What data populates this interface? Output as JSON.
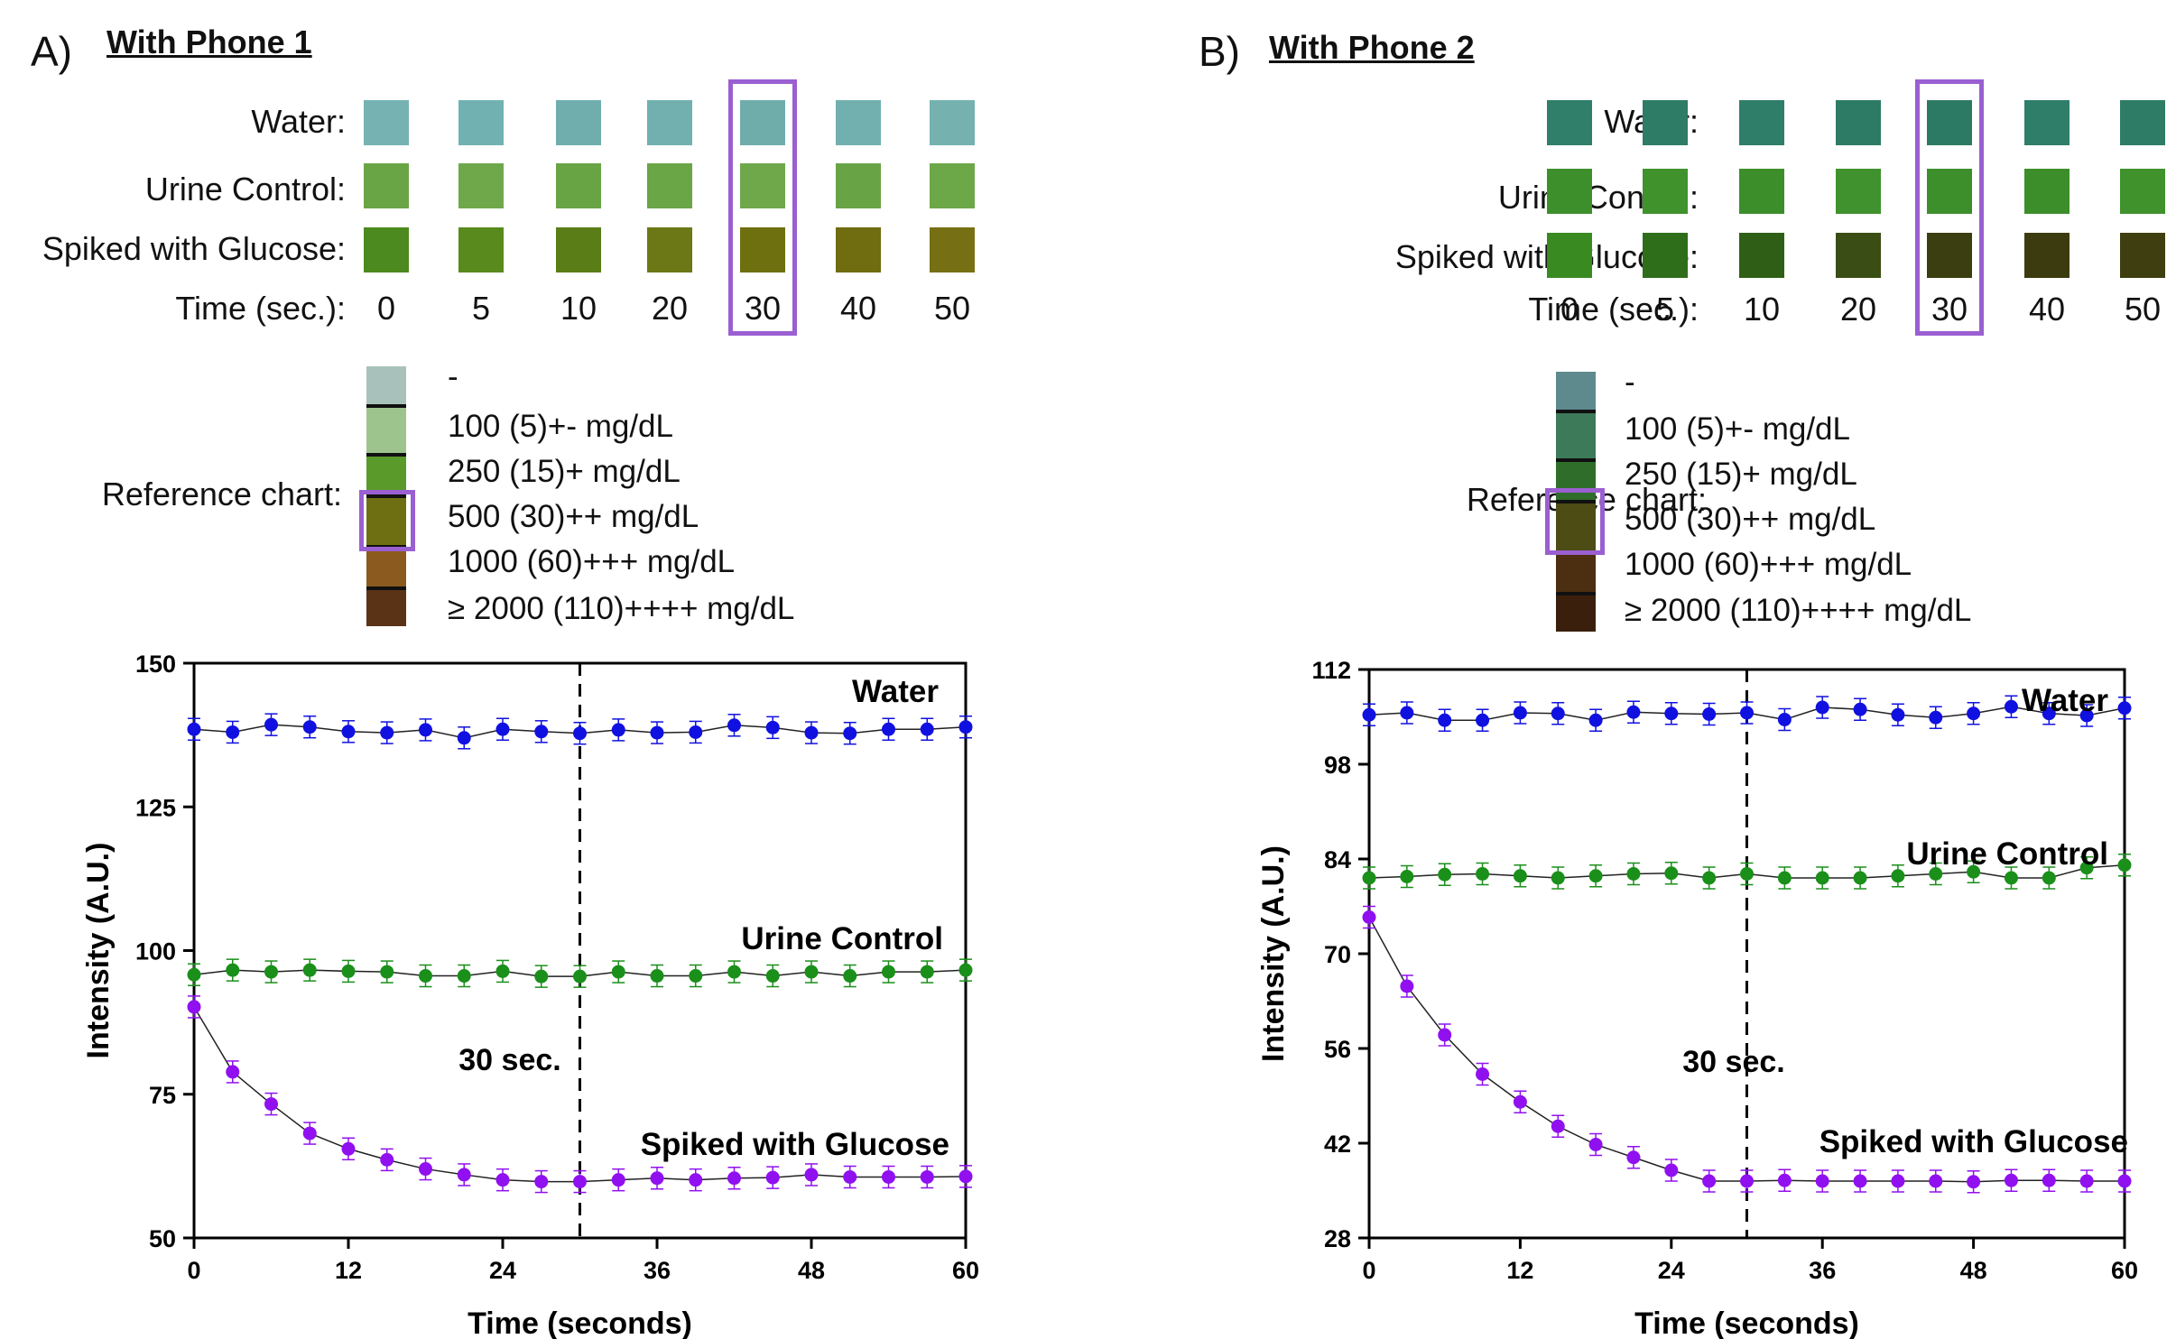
{
  "panels": [
    {
      "letter": "A)",
      "title": "With Phone 1",
      "rows": [
        {
          "label": "Water:",
          "colors": [
            "#76b2b2",
            "#72b1b1",
            "#70aeae",
            "#71b0ae",
            "#6fadab",
            "#71b0ae",
            "#74b1af"
          ]
        },
        {
          "label": "Urine Control:",
          "colors": [
            "#6aa545",
            "#6fa84a",
            "#68a444",
            "#6aa546",
            "#6ea84b",
            "#68a446",
            "#6ca748"
          ]
        },
        {
          "label": "Spiked with Glucose:",
          "colors": [
            "#4c8a1f",
            "#588a1e",
            "#5a7d17",
            "#6c7815",
            "#6e6f0e",
            "#706c10",
            "#776f13"
          ]
        }
      ],
      "time_label": "Time (sec.):",
      "times": [
        "0",
        "5",
        "10",
        "20",
        "30",
        "40",
        "50"
      ],
      "ref_title": "Reference chart:",
      "ref_colors": [
        "#a8c2bb",
        "#9ec48e",
        "#5a9a2a",
        "#6e6f12",
        "#8a5a1e",
        "#5a3316"
      ],
      "ref_labels": [
        "-",
        "100 (5)+- mg/dL",
        "250 (15)+ mg/dL",
        "500 (30)++ mg/dL",
        "1000 (60)+++ mg/dL",
        "≥ 2000 (110)++++ mg/dL"
      ]
    },
    {
      "letter": "B)",
      "title": "With Phone 2",
      "rows": [
        {
          "label": "Water:",
          "colors": [
            "#2f7f6a",
            "#2e7c66",
            "#2f7e69",
            "#2d7b65",
            "#2d7a64",
            "#2f7e69",
            "#2e7c66"
          ]
        },
        {
          "label": "Urine Control:",
          "colors": [
            "#3d8f2c",
            "#3f922c",
            "#3c8e2b",
            "#3f922d",
            "#3d8f2c",
            "#3c8e2b",
            "#3f922c"
          ]
        },
        {
          "label": "Spiked with Glucose:",
          "colors": [
            "#3a8a22",
            "#2e6e1a",
            "#2f5f16",
            "#3a4d14",
            "#3b3e10",
            "#3c3b0f",
            "#3f3e11"
          ]
        }
      ],
      "time_label": "Time (sec.):",
      "times": [
        "0",
        "5",
        "10",
        "20",
        "30",
        "40",
        "50"
      ],
      "ref_title": "Reference chart:",
      "ref_colors": [
        "#5e8a8e",
        "#3d7a5a",
        "#2f6e2a",
        "#4c4c14",
        "#4c2e10",
        "#3a200c"
      ],
      "ref_labels": [
        "-",
        "100 (5)+- mg/dL",
        "250 (15)+ mg/dL",
        "500 (30)++ mg/dL",
        "1000 (60)+++ mg/dL",
        "≥ 2000 (110)++++ mg/dL"
      ]
    }
  ],
  "chart_data": [
    {
      "type": "scatter",
      "xlabel": "Time (seconds)",
      "ylabel": "Intensity (A.U.)",
      "xlim": [
        0,
        60
      ],
      "ylim": [
        50,
        150
      ],
      "xticks": [
        0,
        12,
        24,
        36,
        48,
        60
      ],
      "yticks": [
        50,
        75,
        100,
        125,
        150
      ],
      "vline": {
        "x": 30,
        "label": "30 sec."
      },
      "x": [
        0,
        3,
        6,
        9,
        12,
        15,
        18,
        21,
        24,
        27,
        30,
        33,
        36,
        39,
        42,
        45,
        48,
        51,
        54,
        57,
        60
      ],
      "series": [
        {
          "name": "Water",
          "color": "#1010e0",
          "values": [
            138.5,
            138,
            139.3,
            138.9,
            138.1,
            137.9,
            138.4,
            137,
            138.5,
            138.1,
            137.8,
            138.4,
            137.9,
            138,
            139.2,
            138.8,
            137.9,
            137.8,
            138.5,
            138.5,
            138.9
          ]
        },
        {
          "name": "Urine Control",
          "color": "#1a8f1a",
          "values": [
            95.8,
            96.6,
            96.3,
            96.6,
            96.4,
            96.3,
            95.6,
            95.6,
            96.4,
            95.5,
            95.5,
            96.3,
            95.6,
            95.6,
            96.3,
            95.6,
            96.3,
            95.6,
            96.3,
            96.3,
            96.6
          ]
        },
        {
          "name": "Spiked with Glucose",
          "color": "#9010f0",
          "values": [
            90.2,
            78.9,
            73.3,
            68.2,
            65.5,
            63.6,
            62,
            61,
            60.1,
            59.8,
            59.8,
            60.1,
            60.4,
            60.1,
            60.4,
            60.5,
            61,
            60.6,
            60.6,
            60.6,
            60.7
          ]
        }
      ]
    },
    {
      "type": "scatter",
      "xlabel": "Time (seconds)",
      "ylabel": "Intensity (A.U.)",
      "xlim": [
        0,
        60
      ],
      "ylim": [
        28,
        112
      ],
      "xticks": [
        0,
        12,
        24,
        36,
        48,
        60
      ],
      "yticks": [
        28,
        42,
        56,
        70,
        84,
        98,
        112
      ],
      "vline": {
        "x": 30,
        "label": "30 sec."
      },
      "x": [
        0,
        3,
        6,
        9,
        12,
        15,
        18,
        21,
        24,
        27,
        30,
        33,
        36,
        39,
        42,
        45,
        48,
        51,
        54,
        57,
        60
      ],
      "series": [
        {
          "name": "Water",
          "color": "#1010e0",
          "values": [
            105.3,
            105.6,
            104.5,
            104.5,
            105.6,
            105.5,
            104.5,
            105.7,
            105.5,
            105.4,
            105.6,
            104.6,
            106.4,
            106.1,
            105.3,
            104.9,
            105.5,
            106.5,
            105.5,
            105.2,
            106.3
          ]
        },
        {
          "name": "Urine Control",
          "color": "#1a8f1a",
          "values": [
            81.2,
            81.4,
            81.7,
            81.8,
            81.5,
            81.2,
            81.5,
            81.8,
            81.9,
            81.2,
            81.8,
            81.2,
            81.2,
            81.2,
            81.5,
            81.8,
            82.1,
            81.2,
            81.2,
            82.7,
            83.1
          ]
        },
        {
          "name": "Spiked with Glucose",
          "color": "#9010f0",
          "values": [
            75.4,
            65.2,
            58,
            52.2,
            48.1,
            44.5,
            41.8,
            39.9,
            38,
            36.4,
            36.4,
            36.5,
            36.4,
            36.4,
            36.4,
            36.4,
            36.3,
            36.5,
            36.5,
            36.4,
            36.4
          ]
        }
      ]
    }
  ]
}
